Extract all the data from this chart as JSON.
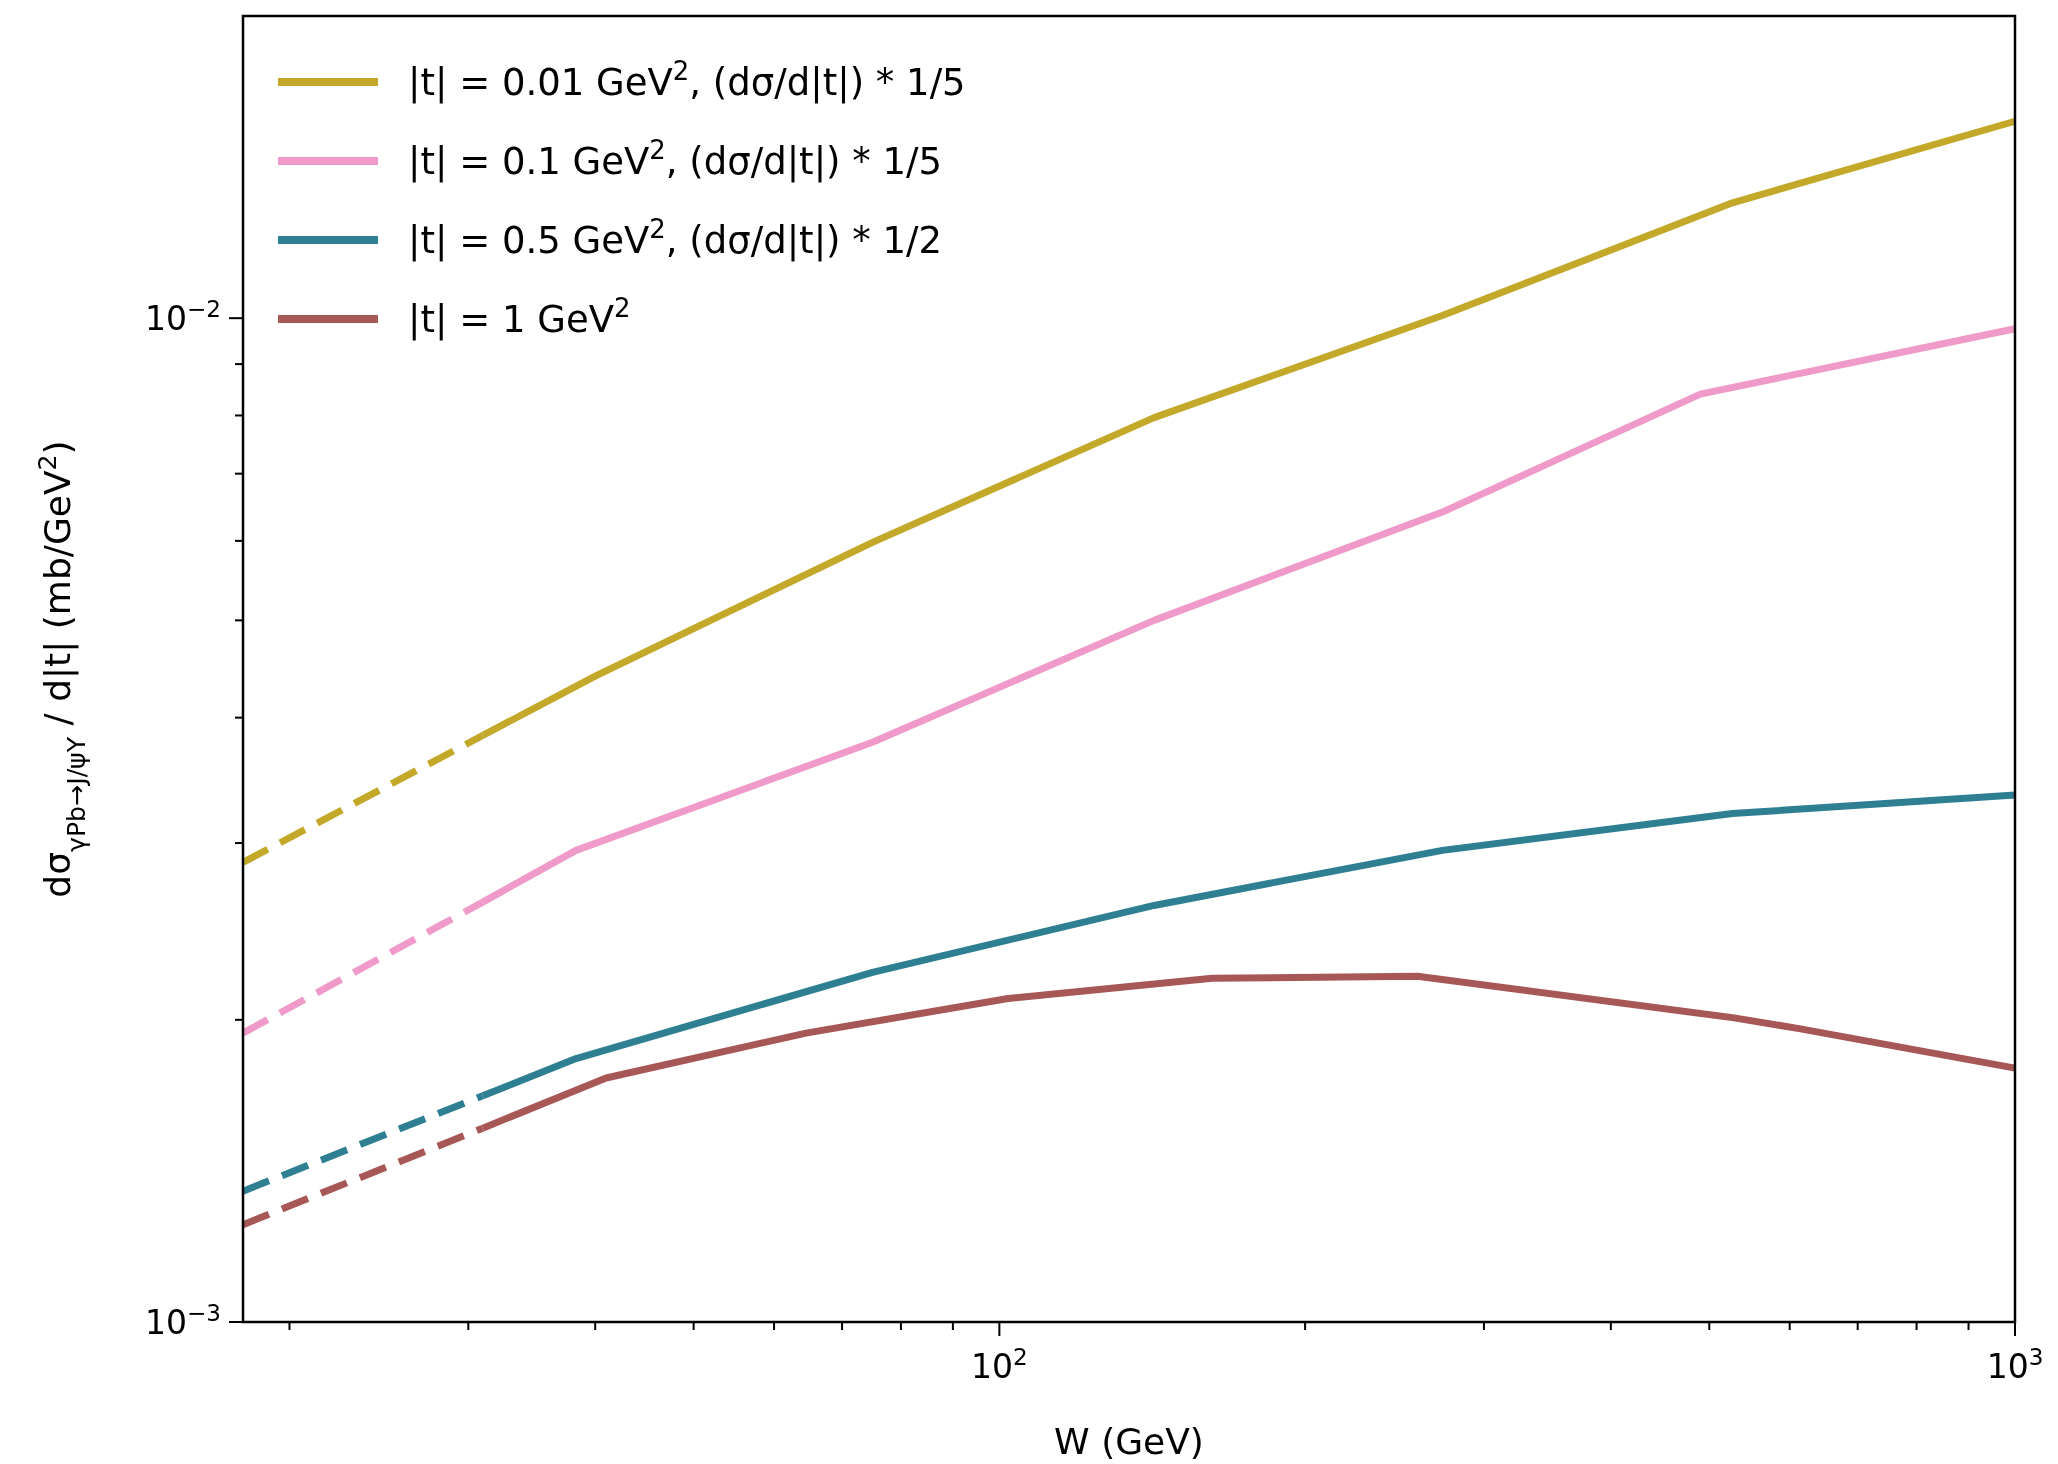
{
  "chart_data": {
    "type": "line",
    "xlabel": "W (GeV)",
    "ylabel": "dσ$_{γPb→J/ψΥ}$ / d|t| (mb/GeV$^{2}$)",
    "log": "xy",
    "grid": false,
    "legend": "top left",
    "xlim": [
      18,
      1000
    ],
    "ylim": [
      0.001,
      0.02
    ],
    "xticks": [
      {
        "value": 20,
        "label": null
      },
      {
        "value": 30,
        "label": null
      },
      {
        "value": 40,
        "label": null
      },
      {
        "value": 50,
        "label": null
      },
      {
        "value": 60,
        "label": null
      },
      {
        "value": 70,
        "label": null
      },
      {
        "value": 80,
        "label": null
      },
      {
        "value": 90,
        "label": null
      },
      {
        "value": 100,
        "label": "10$^{2}$"
      },
      {
        "value": 200,
        "label": null
      },
      {
        "value": 300,
        "label": null
      },
      {
        "value": 400,
        "label": null
      },
      {
        "value": 500,
        "label": null
      },
      {
        "value": 600,
        "label": null
      },
      {
        "value": 700,
        "label": null
      },
      {
        "value": 800,
        "label": null
      },
      {
        "value": 900,
        "label": null
      },
      {
        "value": 1000,
        "label": "10$^{3}$"
      }
    ],
    "yticks": [
      {
        "value": 0.001,
        "label": "10$^{−3}$"
      },
      {
        "value": 0.002,
        "label": null
      },
      {
        "value": 0.003,
        "label": null
      },
      {
        "value": 0.004,
        "label": null
      },
      {
        "value": 0.005,
        "label": null
      },
      {
        "value": 0.006,
        "label": null
      },
      {
        "value": 0.007,
        "label": null
      },
      {
        "value": 0.008,
        "label": null
      },
      {
        "value": 0.009,
        "label": null
      },
      {
        "value": 0.01,
        "label": "10$^{−2}$"
      }
    ],
    "series": [
      {
        "name": "|t| = 0.01 GeV$^{2}$, (dσ/d|t|) * 1/5",
        "color": "#c3a829",
        "line_style": "solid",
        "x": [
          31,
          40,
          75,
          142,
          273,
          527,
          1000
        ],
        "values": [
          0.00384,
          0.0044,
          0.00598,
          0.00796,
          0.01006,
          0.01303,
          0.01571
        ]
      },
      {
        "name": "|t| = 0.1 GeV$^{2}$, (dσ/d|t|) * 1/5",
        "color": "#ef9ac8",
        "line_style": "solid",
        "x": [
          31,
          38.3,
          75,
          142,
          273,
          490,
          1000
        ],
        "values": [
          0.00262,
          0.00295,
          0.00378,
          0.005,
          0.00641,
          0.0084,
          0.00976
        ]
      },
      {
        "name": "|t| = 0.5 GeV$^{2}$, (dσ/d|t|) * 1/2",
        "color": "#2f7f93",
        "line_style": "solid",
        "x": [
          31,
          38.3,
          75,
          142,
          273,
          527,
          1000
        ],
        "values": [
          0.00168,
          0.00183,
          0.00223,
          0.0026,
          0.00295,
          0.00321,
          0.00335
        ]
      },
      {
        "name": "|t| = 1 GeV$^{2}$",
        "color": "#a85757",
        "line_style": "solid",
        "x": [
          31,
          41,
          64.5,
          102,
          162,
          258,
          527,
          613,
          1000
        ],
        "values": [
          0.00156,
          0.00175,
          0.00194,
          0.0021,
          0.0022,
          0.00221,
          0.00201,
          0.00196,
          0.00179
        ]
      },
      {
        "color": "#c3a829",
        "line_style": "dashed",
        "x": [
          18,
          31
        ],
        "values": [
          0.00287,
          0.00384
        ]
      },
      {
        "color": "#ef9ac8",
        "line_style": "dashed",
        "x": [
          18,
          31
        ],
        "values": [
          0.00194,
          0.00262
        ]
      },
      {
        "color": "#2f7f93",
        "line_style": "dashed",
        "x": [
          18,
          31
        ],
        "values": [
          0.00135,
          0.00168
        ]
      },
      {
        "color": "#a85757",
        "line_style": "dashed",
        "x": [
          18,
          31
        ],
        "values": [
          0.00125,
          0.00156
        ]
      }
    ]
  }
}
